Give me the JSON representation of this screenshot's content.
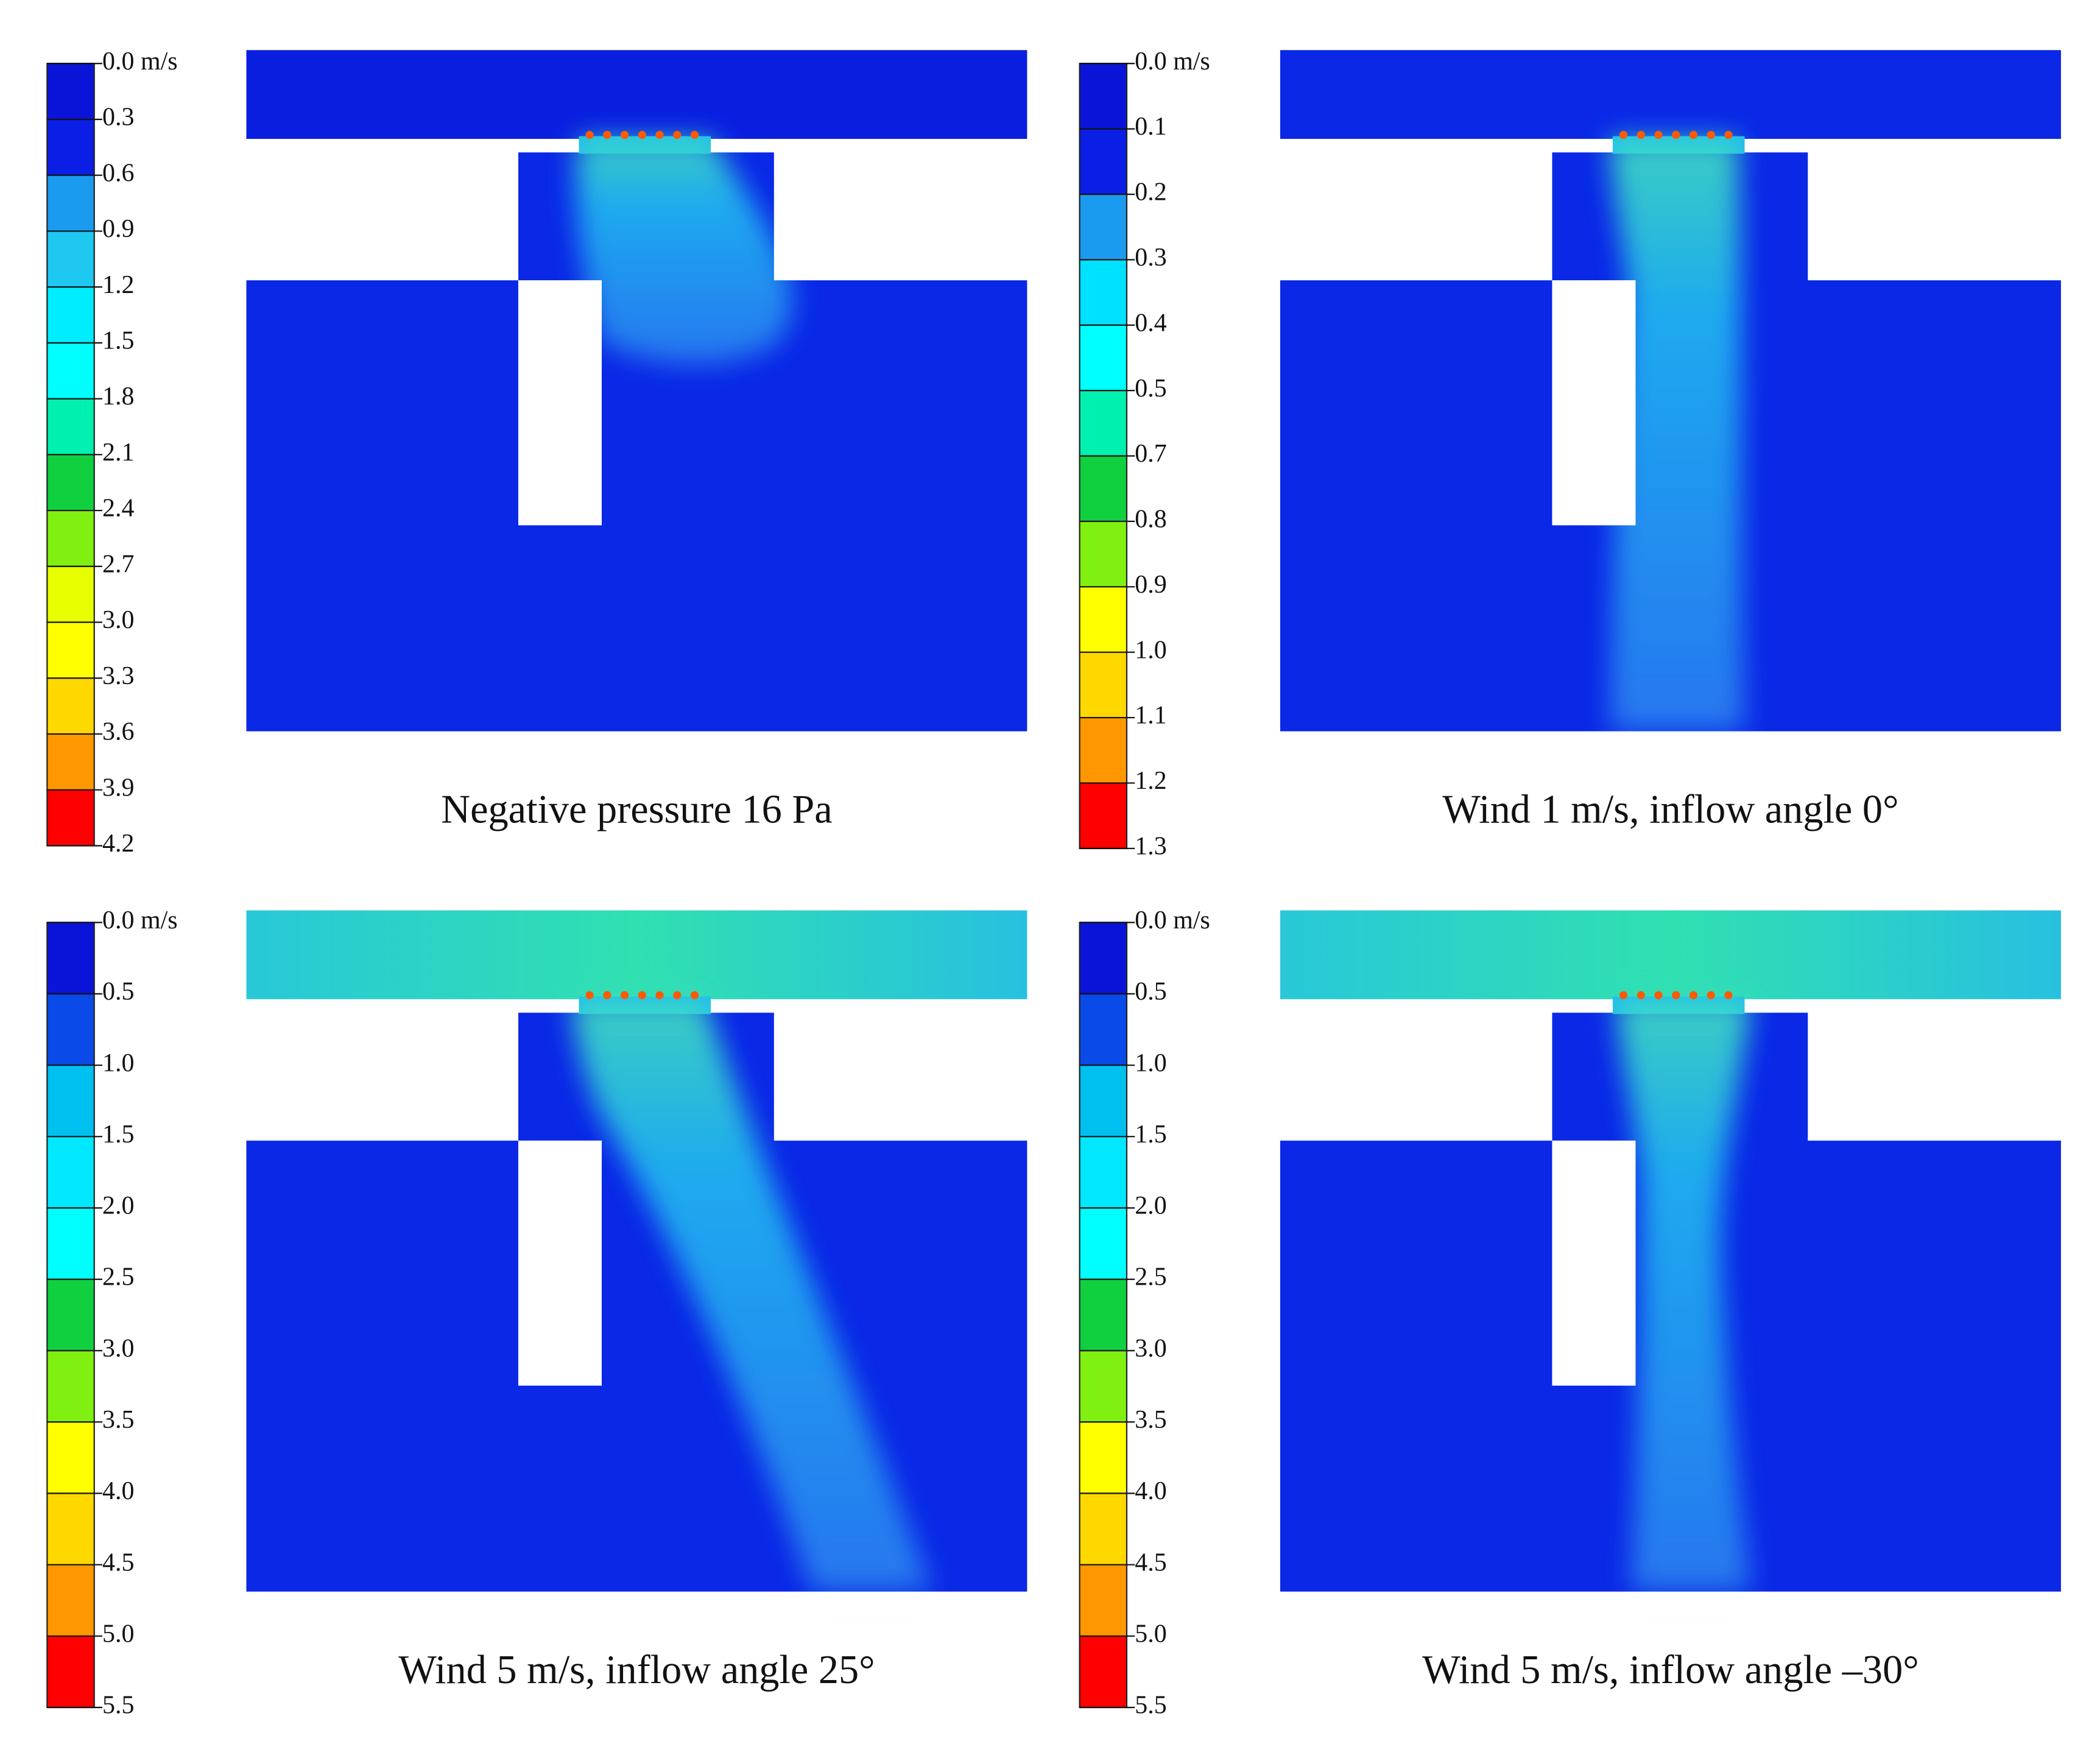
{
  "panels": [
    {
      "caption": "Negative pressure 16 Pa",
      "colorbar": {
        "labels": [
          "0.0 m/s",
          "0.3",
          "0.6",
          "0.9",
          "1.2",
          "1.5",
          "1.8",
          "2.1",
          "2.4",
          "2.7",
          "3.0",
          "3.3",
          "3.6",
          "3.9",
          "4.2"
        ],
        "colors": [
          "#0a14d8",
          "#0a1ee6",
          "#1a9bf0",
          "#1ec8f0",
          "#00ecff",
          "#00ffff",
          "#00f0b0",
          "#10d040",
          "#80f010",
          "#e8ff00",
          "#ffff00",
          "#ffd800",
          "#ff9800",
          "#ff0000"
        ]
      }
    },
    {
      "caption": "Wind 1 m/s, inflow angle 0°",
      "colorbar": {
        "labels": [
          "0.0 m/s",
          "0.1",
          "0.2",
          "0.3",
          "0.4",
          "0.5",
          "0.7",
          "0.8",
          "0.9",
          "1.0",
          "1.1",
          "1.2",
          "1.3"
        ],
        "colors": [
          "#0a14d8",
          "#0a1ee6",
          "#1a9bf0",
          "#00e0ff",
          "#00ffff",
          "#00f0b0",
          "#10d040",
          "#80f010",
          "#ffff00",
          "#ffd800",
          "#ff9800",
          "#ff0000"
        ]
      }
    },
    {
      "caption": "Wind 5 m/s, inflow angle 25°",
      "colorbar": {
        "labels": [
          "0.0 m/s",
          "0.5",
          "1.0",
          "1.5",
          "2.0",
          "2.5",
          "3.0",
          "3.5",
          "4.0",
          "4.5",
          "5.0",
          "5.5"
        ],
        "colors": [
          "#0a14d8",
          "#0a4ae8",
          "#00c0f0",
          "#00e8ff",
          "#00ffff",
          "#10d040",
          "#80f010",
          "#ffff00",
          "#ffd800",
          "#ff9800",
          "#ff0000"
        ]
      }
    },
    {
      "caption": "Wind 5 m/s, inflow angle –30°",
      "colorbar": {
        "labels": [
          "0.0 m/s",
          "0.5",
          "1.0",
          "1.5",
          "2.0",
          "2.5",
          "3.0",
          "3.5",
          "4.0",
          "4.5",
          "5.0",
          "5.5"
        ],
        "colors": [
          "#0a14d8",
          "#0a4ae8",
          "#00c0f0",
          "#00e8ff",
          "#00ffff",
          "#10d040",
          "#80f010",
          "#ffff00",
          "#ffd800",
          "#ff9800",
          "#ff0000"
        ]
      }
    }
  ]
}
